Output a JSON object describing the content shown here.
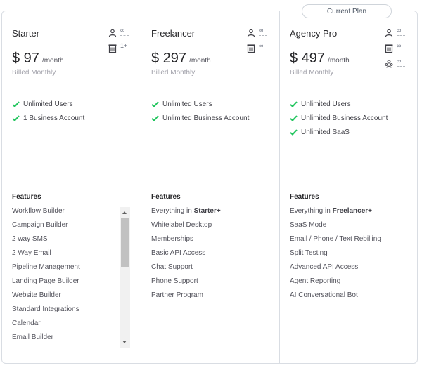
{
  "current_plan_label": "Current Plan",
  "colors": {
    "check": "#22c55e",
    "icon": "#3f3f46"
  },
  "plans": [
    {
      "name": "Starter",
      "price": "$ 97",
      "period": "/month",
      "billed": "Billed Monthly",
      "limits": [
        {
          "icon": "user-icon",
          "value": "∞"
        },
        {
          "icon": "building-icon",
          "value": "1+"
        }
      ],
      "highlights": [
        "Unlimited Users",
        "1 Business Account"
      ],
      "features_title": "Features",
      "features": [
        "Workflow Builder",
        "Campaign Builder",
        "2 way SMS",
        "2 Way Email",
        "Pipeline Management",
        "Landing Page Builder",
        "Website Builder",
        "Standard Integrations",
        "Calendar",
        "Email Builder"
      ]
    },
    {
      "name": "Freelancer",
      "price": "$ 297",
      "period": "/month",
      "billed": "Billed Monthly",
      "limits": [
        {
          "icon": "user-icon",
          "value": "∞"
        },
        {
          "icon": "building-icon",
          "value": "∞"
        }
      ],
      "highlights": [
        "Unlimited Users",
        "Unlimited Business Account"
      ],
      "features_title": "Features",
      "features_lead": {
        "text": "Everything in ",
        "bold": "Starter+"
      },
      "features": [
        "Whitelabel Desktop",
        "Memberships",
        "Basic API Access",
        "Chat Support",
        "Phone Support",
        "Partner Program"
      ]
    },
    {
      "name": "Agency Pro",
      "price": "$ 497",
      "period": "/month",
      "billed": "Billed Monthly",
      "limits": [
        {
          "icon": "user-icon",
          "value": "∞"
        },
        {
          "icon": "building-icon",
          "value": "∞"
        },
        {
          "icon": "saas-users-icon",
          "value": "∞"
        }
      ],
      "highlights": [
        "Unlimited Users",
        "Unlimited Business Account",
        "Unlimited SaaS"
      ],
      "features_title": "Features",
      "features_lead": {
        "text": "Everything in ",
        "bold": "Freelancer+"
      },
      "features": [
        "SaaS Mode",
        "Email / Phone / Text Rebilling",
        "Split Testing",
        "Advanced API Access",
        "Agent Reporting",
        "AI Conversational Bot"
      ]
    }
  ]
}
